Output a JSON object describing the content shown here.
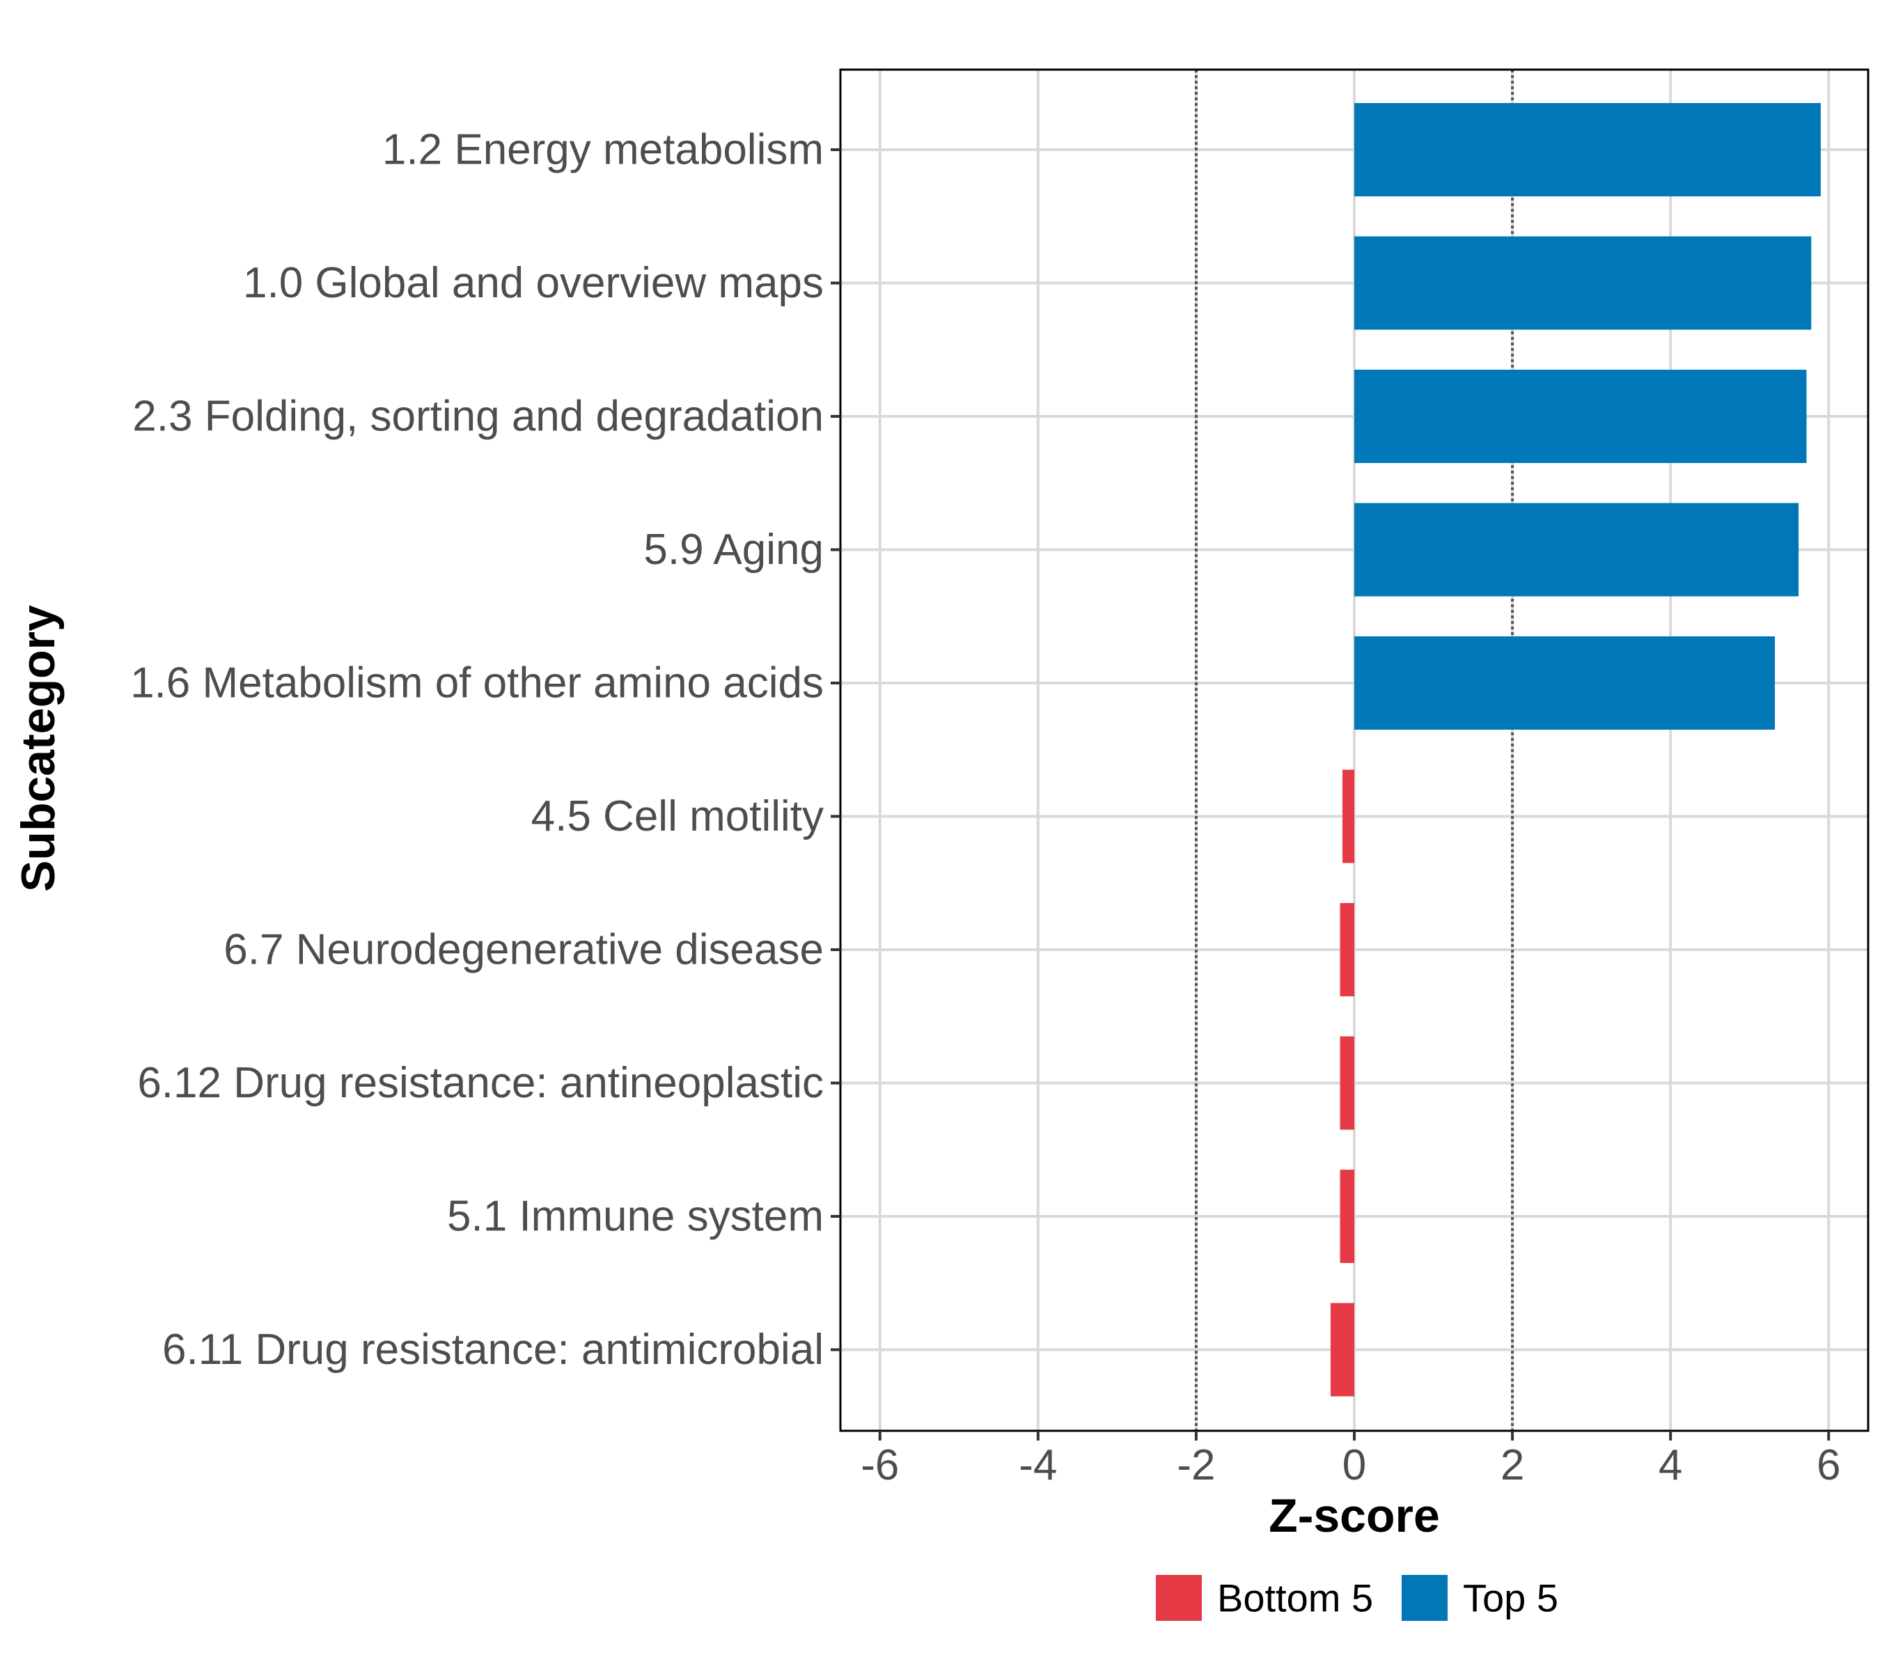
{
  "chart_data": {
    "type": "bar",
    "orientation": "horizontal",
    "xlabel": "Z-score",
    "ylabel": "Subcategory",
    "xlim": [
      -6.5,
      6.5
    ],
    "xticks": [
      -6,
      -4,
      -2,
      0,
      2,
      4,
      6
    ],
    "xtick_labels": [
      "-6",
      "-4",
      "-2",
      "0",
      "2",
      "4",
      "6"
    ],
    "reference_lines": [
      -2,
      2
    ],
    "grid": true,
    "legend_position": "bottom",
    "categories": [
      "1.2 Energy metabolism",
      "1.0 Global and overview maps",
      "2.3 Folding, sorting and degradation",
      "5.9 Aging",
      "1.6 Metabolism of other amino acids",
      "4.5 Cell motility",
      "6.7 Neurodegenerative disease",
      "6.12 Drug resistance: antineoplastic",
      "5.1 Immune system",
      "6.11 Drug resistance: antimicrobial"
    ],
    "values": [
      5.9,
      5.78,
      5.72,
      5.62,
      5.32,
      -0.15,
      -0.18,
      -0.18,
      -0.18,
      -0.3
    ],
    "groups": [
      "Top 5",
      "Top 5",
      "Top 5",
      "Top 5",
      "Top 5",
      "Bottom 5",
      "Bottom 5",
      "Bottom 5",
      "Bottom 5",
      "Bottom 5"
    ],
    "legend": [
      {
        "name": "Bottom 5",
        "color": "#e63946"
      },
      {
        "name": "Top 5",
        "color": "#0077b6"
      }
    ]
  }
}
